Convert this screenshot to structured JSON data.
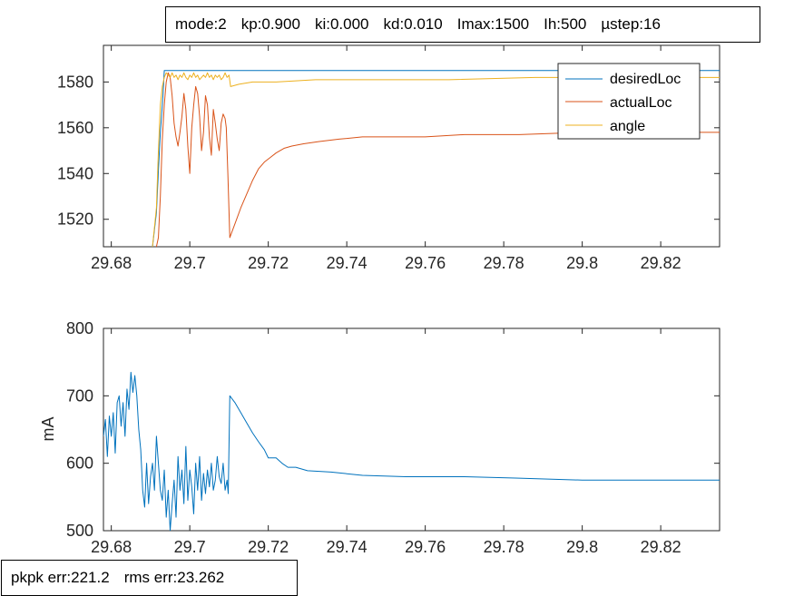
{
  "params": [
    "mode:2",
    "kp:0.900",
    "ki:0.000",
    "kd:0.010",
    "Imax:1500",
    "Ih:500",
    "µstep:16"
  ],
  "errors": {
    "pkpk": "pkpk err:221.2",
    "rms": "rms err:23.262"
  },
  "colors": {
    "desiredLoc": "#0072BD",
    "actualLoc": "#D95319",
    "angle": "#EDB120",
    "current": "#0072BD"
  },
  "chart_data": [
    {
      "type": "line",
      "xlim": [
        29.678,
        29.835
      ],
      "ylim": [
        1508,
        1596
      ],
      "xticks": [
        29.68,
        29.7,
        29.72,
        29.74,
        29.76,
        29.78,
        29.8,
        29.82
      ],
      "xtick_labels": [
        "29.68",
        "29.7",
        "29.72",
        "29.74",
        "29.76",
        "29.78",
        "29.8",
        "29.82"
      ],
      "yticks": [
        1520,
        1540,
        1560,
        1580
      ],
      "ytick_labels": [
        "1520",
        "1540",
        "1560",
        "1580"
      ],
      "grid": false,
      "legend": "top-right",
      "series": [
        {
          "name": "desiredLoc",
          "x": [
            29.6905,
            29.6915,
            29.692,
            29.6925,
            29.6928,
            29.6932,
            29.6935,
            29.6938,
            29.694,
            29.835
          ],
          "y": [
            1508,
            1523,
            1541,
            1558,
            1565,
            1575,
            1585,
            1585,
            1585,
            1585
          ]
        },
        {
          "name": "actualLoc",
          "x": [
            29.6915,
            29.692,
            29.6925,
            29.693,
            29.6935,
            29.694,
            29.6945,
            29.695,
            29.6955,
            29.696,
            29.6965,
            29.697,
            29.6975,
            29.698,
            29.6985,
            29.699,
            29.6995,
            29.7,
            29.7005,
            29.701,
            29.7015,
            29.702,
            29.7025,
            29.703,
            29.7035,
            29.704,
            29.7045,
            29.705,
            29.7055,
            29.706,
            29.7065,
            29.707,
            29.7075,
            29.708,
            29.7085,
            29.709,
            29.7093,
            29.7097,
            29.7102,
            29.7115,
            29.713,
            29.7145,
            29.716,
            29.7175,
            29.719,
            29.7205,
            29.722,
            29.724,
            29.726,
            29.729,
            29.733,
            29.738,
            29.744,
            29.752,
            29.76,
            29.77,
            29.784,
            29.8,
            29.815,
            29.835
          ],
          "y": [
            1508,
            1512,
            1530,
            1555,
            1570,
            1580,
            1584,
            1582,
            1574,
            1562,
            1556,
            1552,
            1558,
            1565,
            1575,
            1568,
            1552,
            1540,
            1560,
            1570,
            1578,
            1575,
            1565,
            1550,
            1558,
            1574,
            1570,
            1556,
            1548,
            1568,
            1562,
            1555,
            1550,
            1562,
            1566,
            1564,
            1560,
            1540,
            1512,
            1518,
            1525,
            1531,
            1537,
            1542,
            1545,
            1547,
            1549,
            1551,
            1552,
            1553,
            1554,
            1555,
            1556,
            1556,
            1556,
            1557,
            1557,
            1558,
            1558,
            1558
          ]
        },
        {
          "name": "angle",
          "x": [
            29.6905,
            29.6915,
            29.692,
            29.6925,
            29.693,
            29.6935,
            29.694,
            29.6945,
            29.695,
            29.6955,
            29.696,
            29.6965,
            29.697,
            29.6975,
            29.698,
            29.6985,
            29.699,
            29.6995,
            29.7,
            29.7005,
            29.701,
            29.7015,
            29.702,
            29.7025,
            29.703,
            29.7035,
            29.704,
            29.7045,
            29.705,
            29.7055,
            29.706,
            29.7065,
            29.707,
            29.7075,
            29.708,
            29.7085,
            29.709,
            29.7095,
            29.71,
            29.7104,
            29.7125,
            29.716,
            29.722,
            29.732,
            29.748,
            29.766,
            29.788,
            29.81,
            29.835
          ],
          "y": [
            1508,
            1525,
            1550,
            1570,
            1578,
            1582,
            1584,
            1583,
            1582,
            1584,
            1582,
            1583,
            1581,
            1583,
            1582,
            1584,
            1582,
            1581,
            1583,
            1582,
            1584,
            1582,
            1583,
            1581,
            1582,
            1583,
            1582,
            1584,
            1582,
            1583,
            1581,
            1583,
            1582,
            1583,
            1581,
            1582,
            1584,
            1582,
            1583,
            1578,
            1579,
            1580,
            1580,
            1581,
            1581,
            1581,
            1582,
            1582,
            1582
          ]
        }
      ]
    },
    {
      "type": "line",
      "xlim": [
        29.678,
        29.835
      ],
      "ylim": [
        500,
        800
      ],
      "xticks": [
        29.68,
        29.7,
        29.72,
        29.74,
        29.76,
        29.78,
        29.8,
        29.82
      ],
      "xtick_labels": [
        "29.68",
        "29.7",
        "29.72",
        "29.74",
        "29.76",
        "29.78",
        "29.8",
        "29.82"
      ],
      "yticks": [
        500,
        600,
        700,
        800
      ],
      "ytick_labels": [
        "500",
        "600",
        "700",
        "800"
      ],
      "ylabel": "mA",
      "grid": false,
      "series": [
        {
          "x": [
            29.678,
            29.6785,
            29.679,
            29.6795,
            29.68,
            29.6805,
            29.681,
            29.6815,
            29.682,
            29.6825,
            29.683,
            29.6835,
            29.684,
            29.6845,
            29.685,
            29.6855,
            29.686,
            29.6865,
            29.687,
            29.6875,
            29.688,
            29.6885,
            29.689,
            29.6895,
            29.69,
            29.6905,
            29.691,
            29.6915,
            29.692,
            29.6925,
            29.693,
            29.6935,
            29.694,
            29.6945,
            29.695,
            29.6955,
            29.696,
            29.6965,
            29.697,
            29.6975,
            29.698,
            29.6985,
            29.699,
            29.6995,
            29.7,
            29.7005,
            29.701,
            29.7015,
            29.702,
            29.7025,
            29.703,
            29.7035,
            29.704,
            29.7045,
            29.705,
            29.7055,
            29.706,
            29.7065,
            29.707,
            29.7075,
            29.708,
            29.7085,
            29.709,
            29.7095,
            29.7098,
            29.7102,
            29.7115,
            29.713,
            29.7145,
            29.716,
            29.7175,
            29.719,
            29.72,
            29.722,
            29.7235,
            29.725,
            29.727,
            29.73,
            29.736,
            29.744,
            29.755,
            29.77,
            29.783,
            29.8,
            29.82,
            29.835
          ],
          "y": [
            640,
            665,
            610,
            670,
            640,
            675,
            615,
            690,
            700,
            655,
            690,
            640,
            710,
            680,
            735,
            705,
            730,
            700,
            650,
            620,
            560,
            535,
            600,
            540,
            580,
            600,
            560,
            640,
            600,
            560,
            545,
            590,
            520,
            560,
            500,
            540,
            575,
            520,
            610,
            560,
            590,
            540,
            625,
            545,
            590,
            565,
            525,
            600,
            560,
            610,
            545,
            585,
            555,
            590,
            565,
            600,
            560,
            575,
            610,
            580,
            570,
            600,
            560,
            575,
            555,
            700,
            690,
            675,
            660,
            645,
            632,
            620,
            608,
            608,
            600,
            594,
            594,
            589,
            587,
            582,
            580,
            580,
            578,
            575,
            575,
            575
          ]
        }
      ]
    }
  ]
}
